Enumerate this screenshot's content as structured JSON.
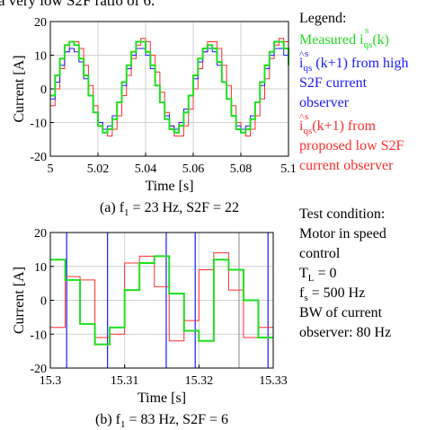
{
  "header_text": "a very low S2F ratio of 6.",
  "colors": {
    "measured": "#22dd22",
    "high_s2f": "#1a1aff",
    "low_s2f": "#ff2d2d",
    "grid": "#d0d0d0",
    "axis": "#000000",
    "cursor": "#1a1aff",
    "cursor_gray": "#9a9a9a"
  },
  "legend": {
    "title": "Legend:",
    "measured": {
      "text": "Measured ",
      "sym": "i",
      "sub": "qs",
      "sup": "s",
      "tail": "(k)"
    },
    "high_s2f": {
      "hat": "^",
      "sym": "i",
      "sub": "qs",
      "sup": "s",
      "mid": " (k+1) from high",
      "line2": "S2F current",
      "line3": "observer"
    },
    "low_s2f": {
      "hat": "^",
      "sym": "i",
      "sub": "qs",
      "sup": "s",
      "mid": "(k+1) from",
      "line2": "proposed low S2F",
      "line3": "current observer"
    }
  },
  "test_condition": {
    "title": "Test condition:",
    "line1": "Motor in speed",
    "line2": "control",
    "tl_sym": "T",
    "tl_sub": "L",
    "tl_val": " = 0",
    "fs_sym": "f",
    "fs_sub": "s",
    "fs_val": " = 500 Hz",
    "bw1": "BW of current",
    "bw2": "observer: 80 Hz"
  },
  "chart_data": [
    {
      "type": "line",
      "caption": "(a) f",
      "caption_sub": "1",
      "caption_tail": " = 23 Hz, S2F = 22",
      "xlabel": "Time [s]",
      "ylabel": "Current [A]",
      "xlim": [
        5.0,
        5.1
      ],
      "ylim": [
        -20,
        20
      ],
      "xticks": [
        5,
        5.02,
        5.04,
        5.06,
        5.08,
        5.1
      ],
      "xtick_labels": [
        "5",
        "5.02",
        "5.04",
        "5.06",
        "5.08",
        "5.1"
      ],
      "yticks": [
        -20,
        -10,
        0,
        10,
        20
      ],
      "ytick_labels": [
        "-20",
        "-10",
        "0",
        "10",
        "20"
      ],
      "grid": true,
      "style": "step",
      "series": [
        {
          "name": "measured",
          "x": [
            5.0,
            5.002,
            5.004,
            5.006,
            5.008,
            5.01,
            5.012,
            5.014,
            5.016,
            5.018,
            5.02,
            5.022,
            5.024,
            5.026,
            5.028,
            5.03,
            5.032,
            5.034,
            5.036,
            5.038,
            5.04,
            5.042,
            5.044,
            5.046,
            5.048,
            5.05,
            5.052,
            5.054,
            5.056,
            5.058,
            5.06,
            5.062,
            5.064,
            5.066,
            5.068,
            5.07,
            5.072,
            5.074,
            5.076,
            5.078,
            5.08,
            5.082,
            5.084,
            5.086,
            5.088,
            5.09,
            5.092,
            5.094,
            5.096,
            5.098,
            5.1
          ],
          "y": [
            -2,
            4,
            9,
            13,
            14,
            13,
            9,
            4,
            -2,
            -7,
            -11,
            -13,
            -12,
            -9,
            -4,
            2,
            7,
            11,
            14,
            14,
            11,
            7,
            1,
            -4,
            -9,
            -12,
            -13,
            -11,
            -7,
            -2,
            4,
            9,
            12,
            13,
            12,
            8,
            2,
            -3,
            -8,
            -12,
            -13,
            -12,
            -9,
            -4,
            2,
            7,
            11,
            14,
            14,
            12,
            7
          ]
        },
        {
          "name": "high_s2f",
          "x": [
            5.0,
            5.002,
            5.004,
            5.006,
            5.008,
            5.01,
            5.012,
            5.014,
            5.016,
            5.018,
            5.02,
            5.022,
            5.024,
            5.026,
            5.028,
            5.03,
            5.032,
            5.034,
            5.036,
            5.038,
            5.04,
            5.042,
            5.044,
            5.046,
            5.048,
            5.05,
            5.052,
            5.054,
            5.056,
            5.058,
            5.06,
            5.062,
            5.064,
            5.066,
            5.068,
            5.07,
            5.072,
            5.074,
            5.076,
            5.078,
            5.08,
            5.082,
            5.084,
            5.086,
            5.088,
            5.09,
            5.092,
            5.094,
            5.096,
            5.098,
            5.1
          ],
          "y": [
            -3,
            2,
            7,
            11,
            12,
            11,
            8,
            3,
            -2,
            -7,
            -10,
            -12,
            -11,
            -8,
            -4,
            1,
            6,
            10,
            12,
            12,
            10,
            6,
            1,
            -4,
            -8,
            -11,
            -12,
            -10,
            -6,
            -2,
            3,
            8,
            11,
            12,
            11,
            7,
            2,
            -3,
            -8,
            -11,
            -12,
            -11,
            -8,
            -4,
            1,
            6,
            10,
            12,
            12,
            10,
            6
          ]
        },
        {
          "name": "low_s2f",
          "x": [
            5.0,
            5.002,
            5.004,
            5.006,
            5.008,
            5.01,
            5.012,
            5.014,
            5.016,
            5.018,
            5.02,
            5.022,
            5.024,
            5.026,
            5.028,
            5.03,
            5.032,
            5.034,
            5.036,
            5.038,
            5.04,
            5.042,
            5.044,
            5.046,
            5.048,
            5.05,
            5.052,
            5.054,
            5.056,
            5.058,
            5.06,
            5.062,
            5.064,
            5.066,
            5.068,
            5.07,
            5.072,
            5.074,
            5.076,
            5.078,
            5.08,
            5.082,
            5.084,
            5.086,
            5.088,
            5.09,
            5.092,
            5.094,
            5.096,
            5.098,
            5.1
          ],
          "y": [
            -5,
            0,
            6,
            11,
            14,
            14,
            12,
            7,
            1,
            -5,
            -10,
            -13,
            -14,
            -12,
            -8,
            -2,
            4,
            9,
            13,
            15,
            14,
            10,
            5,
            -1,
            -7,
            -11,
            -14,
            -14,
            -11,
            -6,
            0,
            6,
            11,
            14,
            14,
            12,
            7,
            1,
            -5,
            -10,
            -13,
            -14,
            -12,
            -8,
            -3,
            3,
            9,
            13,
            15,
            14,
            11
          ]
        }
      ]
    },
    {
      "type": "line",
      "caption": "(b) f",
      "caption_sub": "1",
      "caption_tail": " = 83 Hz, S2F = 6",
      "xlabel": "Time [s]",
      "ylabel": "Current [A]",
      "xlim": [
        15.3,
        15.33
      ],
      "ylim": [
        -20,
        20
      ],
      "xticks": [
        15.3,
        15.31,
        15.32,
        15.33
      ],
      "xtick_labels": [
        "15.3",
        "15.31",
        "15.32",
        "15.33"
      ],
      "yticks": [
        -20,
        -10,
        0,
        10,
        20
      ],
      "ytick_labels": [
        "-20",
        "-10",
        "0",
        "10",
        "20"
      ],
      "grid": true,
      "style": "step",
      "series": [
        {
          "name": "measured",
          "x": [
            15.3,
            15.302,
            15.304,
            15.306,
            15.308,
            15.31,
            15.312,
            15.314,
            15.316,
            15.318,
            15.32,
            15.322,
            15.324,
            15.326,
            15.328,
            15.33
          ],
          "y": [
            12,
            6,
            -7,
            -13,
            -8,
            3,
            11,
            13,
            2,
            -9,
            -12,
            12,
            9,
            0,
            -11,
            -11
          ]
        },
        {
          "name": "low_s2f",
          "x": [
            15.3,
            15.302,
            15.304,
            15.306,
            15.308,
            15.31,
            15.312,
            15.314,
            15.316,
            15.318,
            15.32,
            15.322,
            15.324,
            15.326,
            15.328,
            15.33
          ],
          "y": [
            -8,
            7,
            6,
            -11,
            -10,
            11,
            13,
            4,
            -12,
            -6,
            9,
            14,
            3,
            -11,
            -8,
            8
          ]
        }
      ],
      "vertical_markers": [
        {
          "x": 15.3022,
          "color": "blue"
        },
        {
          "x": 15.3077,
          "color": "blue"
        },
        {
          "x": 15.3156,
          "color": "blue"
        },
        {
          "x": 15.3195,
          "color": "blue"
        },
        {
          "x": 15.3254,
          "color": "gray"
        },
        {
          "x": 15.3293,
          "color": "blue"
        }
      ]
    }
  ]
}
